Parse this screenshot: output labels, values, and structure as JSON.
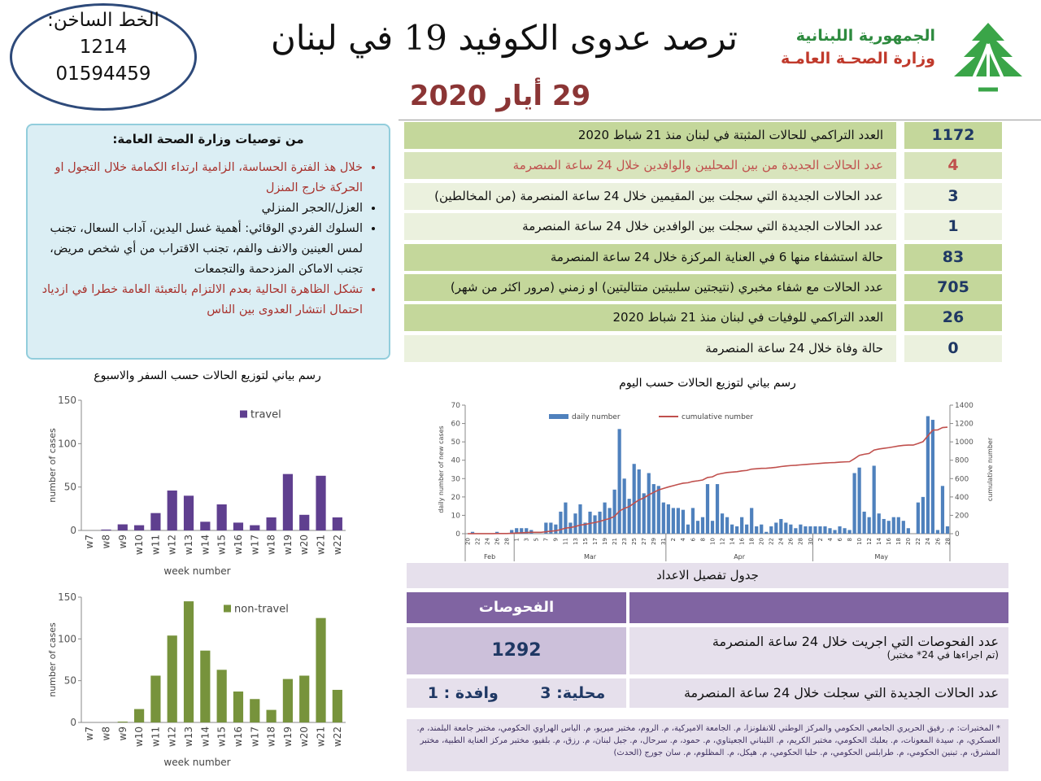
{
  "header": {
    "hotline_label": "الخط الساخن:",
    "hotline_1": "1214",
    "hotline_2": "01594459",
    "title": "ترصد عدوى الكوفيد 19 في لبنان",
    "date": "29 أيار 2020",
    "republic": "الجمهورية اللبنانية",
    "ministry": "وزارة الصحـة العامـة"
  },
  "recommendations": {
    "title": "من توصيات وزارة الصحة العامة:",
    "items": [
      "خلال هذ الفترة الحساسة، الزامية ارتداء الكمامة خلال التجول او الحركة خارج المنزل",
      "العزل/الحجر المنزلي",
      "السلوك الفردي الوقائي: أهمية غسل اليدين، آداب السعال، تجنب لمس العينين والانف والفم، تجنب الاقتراب من أي شخص مريض، تجنب الاماكن المزدحمة والتجمعات",
      "تشكل الظاهرة الحالية بعدم الالتزام بالتعبئة العامة خطرا في ازدياد احتمال انتشار العدوى بين الناس"
    ]
  },
  "stats": {
    "rows": [
      {
        "label": "العدد التراكمي للحالات المثبتة في لبنان منذ 21 شباط 2020",
        "value": 1172
      },
      {
        "label": "عدد الحالات الجديدة من بين المحليين والوافدين خلال 24 ساعة المنصرمة",
        "value": 4
      },
      {
        "label": "عدد الحالات الجديدة التي سجلت بين المقيمين خلال 24 ساعة المنصرمة (من المخالطين)",
        "value": 3
      },
      {
        "label": "عدد الحالات الجديدة التي سجلت بين الوافدين خلال 24 ساعة المنصرمة",
        "value": 1
      },
      {
        "label": "حالة استشفاء منها 6 في العناية المركزة خلال 24 ساعة المنصرمة",
        "value": 83
      },
      {
        "label": "عدد الحالات مع شفاء مخبري (نتيجتين سلبيتين متتاليتين) او زمني (مرور اكثر من شهر)",
        "value": 705
      },
      {
        "label": "العدد التراكمي للوفيات في لبنان منذ 21 شباط 2020",
        "value": 26
      },
      {
        "label": "حالة وفاة خلال 24 ساعة المنصرمة",
        "value": 0
      }
    ]
  },
  "travel_chart": {
    "type": "bar",
    "title": "رسم بياني لتوزيع الحالات حسب السفر والاسبوع",
    "x_label": "week number",
    "y_label": "number of cases",
    "legend": "top",
    "categories": [
      "w7",
      "w8",
      "w9",
      "w10",
      "w11",
      "w12",
      "w13",
      "w14",
      "w15",
      "w16",
      "w17",
      "w18",
      "w19",
      "w20",
      "w21",
      "w22"
    ],
    "series": [
      {
        "name": "travel",
        "color": "#5f3f8f",
        "values": [
          0,
          1,
          7,
          6,
          20,
          46,
          40,
          10,
          30,
          9,
          6,
          15,
          65,
          18,
          63,
          15
        ]
      }
    ],
    "ylim": [
      0,
      150
    ],
    "yticks": [
      0,
      50,
      100,
      150
    ]
  },
  "nontravel_chart": {
    "type": "bar",
    "x_label": "week number",
    "y_label": "number of cases",
    "legend": "top",
    "categories": [
      "w7",
      "w8",
      "w9",
      "w10",
      "w11",
      "w12",
      "w13",
      "w14",
      "w15",
      "w16",
      "w17",
      "w18",
      "w19",
      "w20",
      "w21",
      "w22"
    ],
    "series": [
      {
        "name": "non-travel",
        "color": "#77933c",
        "values": [
          0,
          0,
          1,
          16,
          56,
          104,
          145,
          86,
          63,
          37,
          28,
          15,
          52,
          56,
          125,
          39
        ]
      }
    ],
    "ylim": [
      0,
      150
    ],
    "yticks": [
      0,
      50,
      100,
      150
    ]
  },
  "daily_chart": {
    "type": "bar_line",
    "title": "رسم بياني لتوزيع الحالات حسب اليوم",
    "y_label": "daily number of new cases",
    "y2_label": "cumulative number",
    "legend": "top",
    "categories": [
      "20",
      null,
      "22",
      null,
      "24",
      null,
      "26",
      null,
      "28",
      null,
      "1",
      null,
      "3",
      null,
      "5",
      null,
      "7",
      null,
      "9",
      null,
      "11",
      null,
      "13",
      null,
      "15",
      null,
      "17",
      null,
      "19",
      null,
      "21",
      null,
      "23",
      null,
      "25",
      null,
      "27",
      null,
      "29",
      null,
      "31",
      null,
      "2",
      null,
      "4",
      null,
      "6",
      null,
      "8",
      null,
      "10",
      null,
      "12",
      null,
      "14",
      null,
      "16",
      null,
      "18",
      null,
      "20",
      null,
      "22",
      null,
      "24",
      null,
      "26",
      null,
      "28",
      null,
      "30",
      null,
      "2",
      null,
      "4",
      null,
      "6",
      null,
      "8",
      null,
      "10",
      null,
      "12",
      null,
      "14",
      null,
      "16",
      null,
      "18",
      null,
      "20",
      null,
      "22",
      null,
      "24",
      null,
      "26",
      null,
      "28"
    ],
    "x_groups": [
      {
        "label": "Feb",
        "count": 10
      },
      {
        "label": "Mar",
        "count": 31
      },
      {
        "label": "Apr",
        "count": 30
      },
      {
        "label": "May",
        "count": 28
      }
    ],
    "series": [
      {
        "name": "daily number",
        "color": "#4f81bd",
        "values": [
          0,
          1,
          0,
          0,
          0,
          0,
          1,
          0,
          0,
          2,
          3,
          3,
          3,
          2,
          0,
          0,
          6,
          6,
          5,
          12,
          17,
          6,
          11,
          16,
          6,
          12,
          10,
          12,
          17,
          14,
          24,
          57,
          30,
          19,
          38,
          35,
          22,
          33,
          27,
          26,
          17,
          16,
          14,
          14,
          13,
          5,
          14,
          7,
          9,
          27,
          7,
          27,
          11,
          9,
          5,
          4,
          9,
          5,
          14,
          4,
          5,
          1,
          4,
          6,
          8,
          6,
          5,
          3,
          5,
          4,
          4,
          4,
          4,
          4,
          3,
          2,
          4,
          3,
          2,
          33,
          36,
          12,
          9,
          37,
          11,
          8,
          7,
          9,
          9,
          7,
          3,
          0,
          17,
          20,
          64,
          62,
          2,
          26,
          4
        ]
      },
      {
        "name": "cumulative number",
        "color": "#c0504d",
        "axis": "y2",
        "values": [
          0,
          1,
          1,
          1,
          1,
          1,
          2,
          2,
          2,
          4,
          7,
          10,
          13,
          15,
          15,
          15,
          21,
          27,
          32,
          44,
          61,
          67,
          78,
          94,
          100,
          112,
          122,
          134,
          151,
          165,
          189,
          246,
          276,
          295,
          333,
          368,
          390,
          423,
          450,
          476,
          493,
          509,
          523,
          537,
          550,
          555,
          569,
          576,
          585,
          612,
          619,
          646,
          657,
          666,
          671,
          675,
          684,
          689,
          703,
          707,
          712,
          713,
          717,
          723,
          731,
          737,
          742,
          745,
          750,
          754,
          758,
          762,
          766,
          770,
          773,
          775,
          779,
          782,
          784,
          817,
          853,
          865,
          874,
          911,
          922,
          930,
          937,
          946,
          955,
          962,
          965,
          965,
          982,
          1002,
          1066,
          1128,
          1130,
          1156,
          1160
        ]
      }
    ],
    "ylim": [
      0,
      70
    ],
    "yticks": [
      0,
      10,
      20,
      30,
      40,
      50,
      60,
      70
    ],
    "y2lim": [
      0,
      1400
    ],
    "y2ticks": [
      0,
      200,
      400,
      600,
      800,
      1000,
      1200,
      1400
    ]
  },
  "details": {
    "title": "جدول تفصيل الاعداد",
    "header": "الفحوصات",
    "tests_label": "عدد الفحوصات التي اجريت خلال 24 ساعة المنصرمة",
    "tests_note": "(تم اجراءها في 24* مختبر)",
    "tests_value": 1292,
    "new_label": "عدد الحالات الجديدة التي سجلت خلال 24 ساعة المنصرمة",
    "local": "محلية: 3",
    "arrivals": "وافدة : 1"
  },
  "footnote": "* المختبرات: م. رفيق الحريري الجامعي الحكومي والمركز الوطني للانفلونزا، م. الجامعة الاميركية، م. الروم، مختبر ميريو، م. الياس الهراوي الحكومي، مختبر جامعة البلمند، م. العسكري، م. سيدة المعونات، م. بعلبك الحكومي، مختبر الكريم، م. اللبناني الجعيتاوي، م. حمود، م. سرحال، م. جبل لبنان، م. رزق، م. بلفيو، مختبر مركز العناية الطبية، مختبر المشرق، م. تبنين الحكومي، م. طرابلس الحكومي، م. حلبا الحكومي، م. هيكل، م. المظلوم، م. سان جورج (الحدث)"
}
